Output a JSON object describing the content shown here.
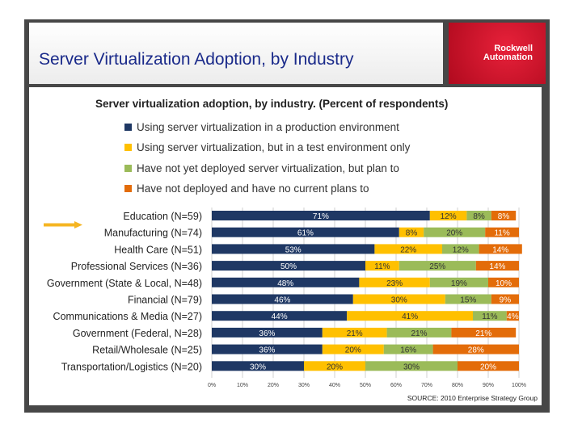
{
  "slide_title": "Server Virtualization Adoption, by Industry",
  "logo_text": "Rockwell Automation",
  "source": "SOURCE:  2010 Enterprise Strategy Group",
  "colors": {
    "production": "#1f3864",
    "test": "#ffc000",
    "plan": "#9bbb59",
    "no_plans": "#e36c09"
  },
  "chart_data": {
    "type": "bar",
    "orientation": "horizontal-stacked-100",
    "title": "Server virtualization adoption, by industry. (Percent of respondents)",
    "categories": [
      "Education (N=59)",
      "Manufacturing (N=74)",
      "Health Care (N=51)",
      "Professional Services (N=36)",
      "Government (State & Local, N=48)",
      "Financial (N=79)",
      "Communications & Media (N=27)",
      "Government (Federal, N=28)",
      "Retail/Wholesale (N=25)",
      "Transportation/Logistics (N=20)"
    ],
    "series": [
      {
        "name": "Using server virtualization in a production environment",
        "values": [
          71,
          61,
          53,
          50,
          48,
          46,
          44,
          36,
          36,
          30
        ]
      },
      {
        "name": "Using server virtualization, but in a test environment only",
        "values": [
          12,
          8,
          22,
          11,
          23,
          30,
          41,
          21,
          20,
          20
        ]
      },
      {
        "name": "Have not yet deployed server virtualization, but plan to",
        "values": [
          8,
          20,
          12,
          25,
          19,
          15,
          11,
          21,
          16,
          30
        ]
      },
      {
        "name": "Have not deployed and have no current plans to",
        "values": [
          8,
          11,
          14,
          14,
          10,
          9,
          4,
          21,
          28,
          20
        ]
      }
    ],
    "xticks": [
      "0%",
      "10%",
      "20%",
      "30%",
      "40%",
      "50%",
      "60%",
      "70%",
      "80%",
      "90%",
      "100%"
    ],
    "xlim": [
      0,
      100
    ],
    "grid": true,
    "legend_position": "top",
    "highlighted_category": "Manufacturing (N=74)"
  }
}
